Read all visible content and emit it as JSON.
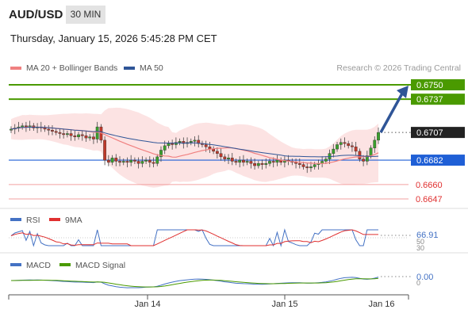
{
  "header": {
    "symbol": "AUD/USD",
    "timeframe": "30 MIN",
    "datetime": "Thursday, January 15, 2026 5:45:28 PM CET"
  },
  "legend": {
    "ma20_label": "MA 20 + Bollinger Bands",
    "ma20_color": "#f08080",
    "ma50_label": "MA 50",
    "ma50_color": "#2f5597",
    "credit": "Research © 2026 Trading Central"
  },
  "chart_data": [
    {
      "type": "candlestick",
      "title": "",
      "x_tick_labels": [
        "Jan 14",
        "Jan 15",
        "Jan 16"
      ],
      "current_price": 0.6707,
      "levels": [
        {
          "value": 0.675,
          "label": "0.6750",
          "color": "#4a9a00",
          "kind": "resistance"
        },
        {
          "value": 0.6737,
          "label": "0.6737",
          "color": "#4a9a00",
          "kind": "resistance"
        },
        {
          "value": 0.6707,
          "label": "0.6707",
          "color": "#222222",
          "kind": "last"
        },
        {
          "value": 0.6682,
          "label": "0.6682",
          "color": "#1f5fd6",
          "kind": "pivot"
        },
        {
          "value": 0.666,
          "label": "0.6660",
          "color": "#e03030",
          "kind": "support"
        },
        {
          "value": 0.6647,
          "label": "0.6647",
          "color": "#e03030",
          "kind": "support"
        }
      ],
      "close_series": [
        0.671,
        0.6711,
        0.6712,
        0.6713,
        0.6712,
        0.6713,
        0.6711,
        0.6712,
        0.6711,
        0.671,
        0.6709,
        0.6708,
        0.6707,
        0.6706,
        0.6705,
        0.6706,
        0.6704,
        0.6703,
        0.6705,
        0.6704,
        0.6702,
        0.6703,
        0.6701,
        0.6712,
        0.67,
        0.6682,
        0.668,
        0.6684,
        0.6681,
        0.668,
        0.6681,
        0.668,
        0.6682,
        0.6681,
        0.6679,
        0.6681,
        0.6682,
        0.668,
        0.6679,
        0.6685,
        0.6691,
        0.6695,
        0.6697,
        0.6696,
        0.6698,
        0.6699,
        0.6697,
        0.6698,
        0.6699,
        0.67,
        0.6697,
        0.6696,
        0.6694,
        0.6692,
        0.669,
        0.6688,
        0.6685,
        0.6683,
        0.6684,
        0.6681,
        0.668,
        0.6682,
        0.668,
        0.6681,
        0.6679,
        0.6677,
        0.6679,
        0.6678,
        0.6679,
        0.6681,
        0.668,
        0.6682,
        0.668,
        0.6682,
        0.6681,
        0.668,
        0.6679,
        0.6678,
        0.6676,
        0.6675,
        0.6676,
        0.6678,
        0.6679,
        0.6681,
        0.6683,
        0.6688,
        0.6692,
        0.6696,
        0.6698,
        0.6697,
        0.6695,
        0.6694,
        0.669,
        0.6683,
        0.6681,
        0.6686,
        0.6693,
        0.67,
        0.6707
      ],
      "forecast_arrow": {
        "from": 0.6707,
        "to": 0.675
      }
    },
    {
      "type": "line",
      "title": "RSI",
      "series": [
        {
          "name": "RSI",
          "color": "#4472c4"
        },
        {
          "name": "9MA",
          "color": "#e03030"
        }
      ],
      "current_value_label": "66.91",
      "tick_labels": [
        "50",
        "30"
      ]
    },
    {
      "type": "line",
      "title": "MACD",
      "series": [
        {
          "name": "MACD",
          "color": "#4472c4"
        },
        {
          "name": "MACD Signal",
          "color": "#4a9a00"
        }
      ],
      "current_value_label": "0.00",
      "tick_labels": [
        "0"
      ]
    }
  ]
}
